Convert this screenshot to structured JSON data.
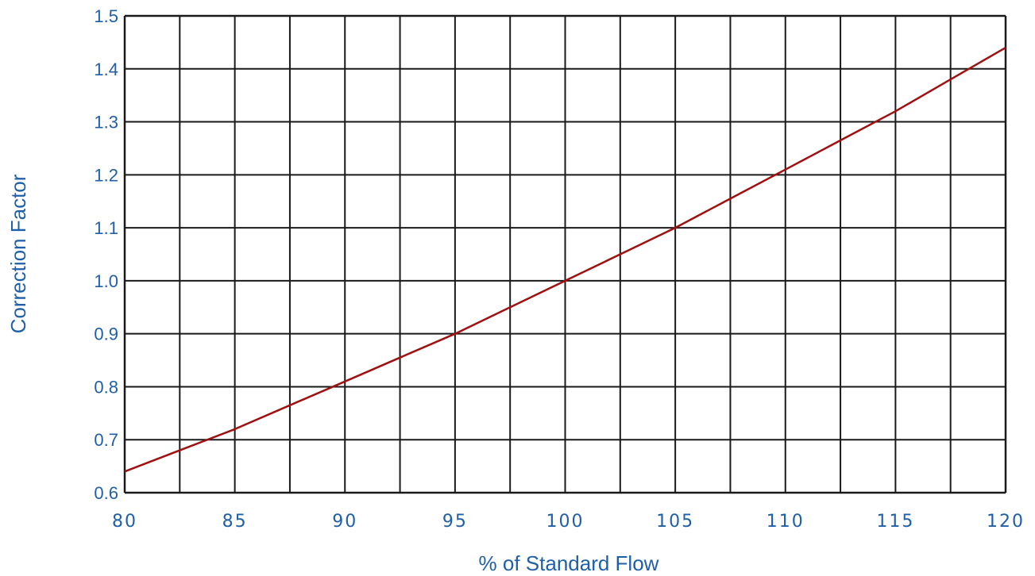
{
  "chart_data": {
    "type": "line",
    "xlabel": "% of Standard Flow",
    "ylabel": "Correction Factor",
    "xlim": [
      80,
      120
    ],
    "ylim": [
      0.6,
      1.5
    ],
    "x_ticks": [
      "80",
      "85",
      "90",
      "95",
      "100",
      "105",
      "110",
      "115",
      "120"
    ],
    "y_ticks": [
      "0.6",
      "0.7",
      "0.8",
      "0.9",
      "1.0",
      "1.1",
      "1.2",
      "1.3",
      "1.4",
      "1.5"
    ],
    "x_grid_step": 2.5,
    "y_grid_step": 0.1,
    "grid": true,
    "series": [
      {
        "x": [
          80,
          82.5,
          85,
          87.5,
          90,
          92.5,
          95,
          97.5,
          100,
          102.5,
          105,
          107.5,
          110,
          112.5,
          115,
          117.5,
          120
        ],
        "y": [
          0.64,
          0.68,
          0.72,
          0.765,
          0.81,
          0.855,
          0.9,
          0.95,
          1.0,
          1.05,
          1.1,
          1.155,
          1.21,
          1.265,
          1.32,
          1.38,
          1.44
        ]
      }
    ]
  },
  "colors": {
    "line": "#a01010",
    "grid": "#1a1a1a",
    "text": "#1f5fa8"
  }
}
